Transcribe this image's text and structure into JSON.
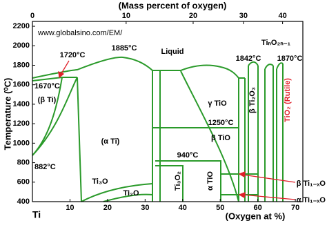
{
  "chart_data": {
    "type": "phase-diagram",
    "title": "(Mass percent of oxygen)",
    "xlabel": "(Oxygen at %)",
    "ylabel": "Temperature (⁰C)",
    "xlim": [
      0,
      72
    ],
    "xticks": [
      {
        "value": 0,
        "label": "Ti"
      },
      10,
      20,
      30,
      40,
      50,
      60,
      70
    ],
    "ylim": [
      400,
      2250
    ],
    "yticks": [
      400,
      600,
      800,
      1000,
      1200,
      1400,
      1600,
      1800,
      2000,
      2200
    ],
    "top_ticks": [
      0,
      10,
      20,
      30,
      40
    ],
    "color": "#2a9a2a",
    "annotations": [
      "www.globalsino.com/EM/",
      "Liquid",
      "1720°C",
      "1885°C",
      "1670°C",
      "(β Ti)",
      "(α Ti)",
      "882°C",
      "γ TiO",
      "1250°C",
      "β TiO",
      "940°C",
      "Ti₃O₂",
      "α TiO",
      "Ti₃O",
      "Ti₂O",
      "1842°C",
      "1870°C",
      "TiₙO₂ₙ₋₁",
      "β Ti₂O₃",
      "TiO₂ (Rutile)",
      "β Ti₁₋ₓO",
      "α Ti₁₋ₓO"
    ]
  }
}
